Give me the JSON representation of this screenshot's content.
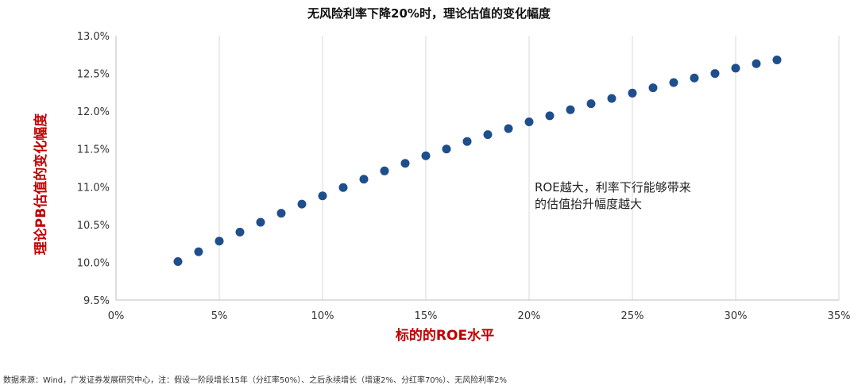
{
  "chart_data": {
    "type": "scatter",
    "title": "无风险利率下降20%时，理论估值的变化幅度",
    "xlabel": "标的的ROE水平",
    "ylabel": "理论PB估值的变化幅度",
    "xlim": [
      0,
      35
    ],
    "ylim": [
      9.5,
      13.0
    ],
    "x_ticks": [
      "0%",
      "5%",
      "10%",
      "15%",
      "20%",
      "25%",
      "30%",
      "35%"
    ],
    "y_ticks": [
      "9.5%",
      "10.0%",
      "10.5%",
      "11.0%",
      "11.5%",
      "12.0%",
      "12.5%",
      "13.0%"
    ],
    "grid": "vertical",
    "marker_color": "#1f4e8c",
    "x": [
      3,
      4,
      5,
      6,
      7,
      8,
      9,
      10,
      11,
      12,
      13,
      14,
      15,
      16,
      17,
      18,
      19,
      20,
      21,
      22,
      23,
      24,
      25,
      26,
      27,
      28,
      29,
      30,
      31,
      32
    ],
    "y": [
      10.01,
      10.14,
      10.28,
      10.4,
      10.53,
      10.65,
      10.77,
      10.88,
      10.99,
      11.1,
      11.21,
      11.31,
      11.41,
      11.5,
      11.6,
      11.69,
      11.77,
      11.86,
      11.94,
      12.02,
      12.1,
      12.17,
      12.24,
      12.31,
      12.38,
      12.44,
      12.5,
      12.57,
      12.63,
      12.68
    ],
    "annotation": "ROE越大，利率下行能够带来\n的估值抬升幅度越大"
  },
  "source_note": "数据来源：Wind，广发证券发展研究中心，注：假设一阶段增长15年（分红率50%）、之后永续增长（增速2%、分红率70%）、无风险利率2%"
}
